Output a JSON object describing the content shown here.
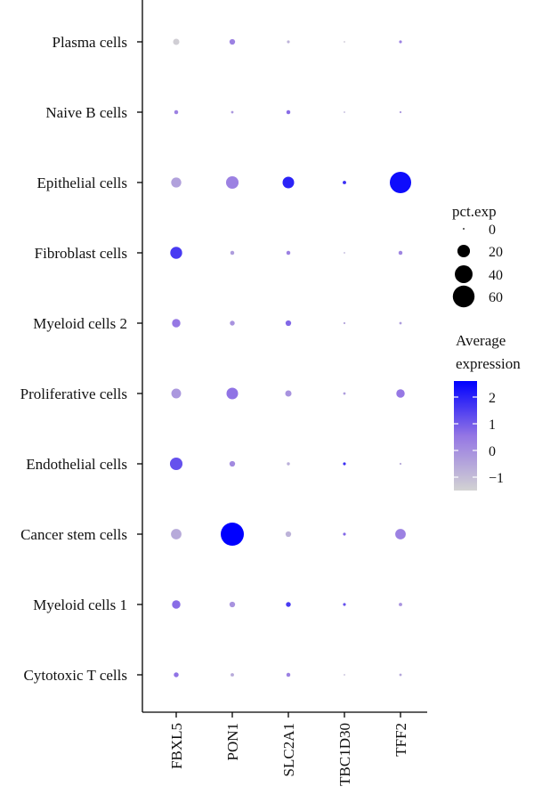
{
  "chart_data": {
    "type": "dotplot",
    "title": "",
    "xlabel": "",
    "ylabel": "",
    "genes": [
      "FBXL5",
      "PON1",
      "SLC2A1",
      "TBC1D30",
      "TFF2"
    ],
    "cell_types": [
      "Plasma cells",
      "Naive B cells",
      "Epithelial cells",
      "Fibroblast cells",
      "Myeloid cells 2",
      "Proliferative cells",
      "Endothelial cells",
      "Cancer stem cells",
      "Myeloid cells 1",
      "Cytotoxic T cells"
    ],
    "pct_exp": [
      [
        5,
        4,
        1,
        0.3,
        1
      ],
      [
        2,
        0.8,
        2,
        0.2,
        0.5
      ],
      [
        13,
        20,
        17,
        1.5,
        58
      ],
      [
        18,
        2,
        2,
        0.2,
        2
      ],
      [
        9,
        3,
        4,
        0.5,
        0.8
      ],
      [
        12,
        17,
        5,
        0.8,
        9
      ],
      [
        20,
        4,
        1.2,
        1,
        0.5
      ],
      [
        14,
        68,
        4,
        1,
        14
      ],
      [
        9,
        4,
        3,
        1,
        1.5
      ],
      [
        3,
        1.5,
        2,
        0.3,
        0.8
      ]
    ],
    "avg_exp": [
      [
        -1.4,
        0.3,
        -0.8,
        -1.2,
        0.3
      ],
      [
        0.3,
        -0.2,
        0.7,
        -0.8,
        -0.2
      ],
      [
        -0.4,
        0.3,
        2.0,
        1.8,
        2.4
      ],
      [
        1.6,
        -0.3,
        0.3,
        -0.8,
        0.2
      ],
      [
        0.5,
        -0.1,
        0.8,
        -0.5,
        -0.3
      ],
      [
        -0.2,
        0.6,
        -0.1,
        -0.3,
        0.5
      ],
      [
        1.2,
        0.1,
        -0.7,
        1.8,
        -0.6
      ],
      [
        -0.6,
        2.6,
        -0.8,
        0.8,
        0.3
      ],
      [
        0.7,
        -0.1,
        1.6,
        1.2,
        -0.1
      ],
      [
        0.6,
        -0.6,
        0.3,
        -0.9,
        -0.5
      ]
    ],
    "size_legend": {
      "title": "pct.exp",
      "breaks": [
        0,
        20,
        40,
        60
      ],
      "labels": [
        "0",
        "20",
        "40",
        "60"
      ]
    },
    "color_legend": {
      "title_line1": "Average",
      "title_line2": "expression",
      "breaks": [
        2,
        1,
        0,
        -1
      ],
      "labels": [
        "2",
        "1",
        "0",
        "−1"
      ],
      "range": [
        -1.5,
        2.6
      ],
      "low_color": "#d3d3d3",
      "high_color": "#0000ff"
    },
    "grid": false
  }
}
